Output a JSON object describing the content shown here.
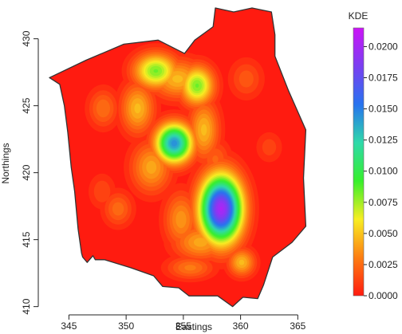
{
  "chart_data": {
    "type": "heatmap",
    "title": "",
    "xlabel": "Eastings",
    "ylabel": "Northings",
    "xlim": [
      343.3,
      366.3
    ],
    "ylim": [
      409.8,
      432.3
    ],
    "x_ticks": [
      "345",
      "350",
      "355",
      "360",
      "365"
    ],
    "y_ticks": [
      "410",
      "415",
      "420",
      "425",
      "430"
    ],
    "legend": {
      "title": "KDE",
      "position": "right",
      "range": [
        0,
        0.0215
      ],
      "ticks": [
        "0.0000",
        "0.0025",
        "0.0050",
        "0.0075",
        "0.0100",
        "0.0125",
        "0.0150",
        "0.0175",
        "0.0200"
      ],
      "colors": [
        "#ff1b10",
        "#fd7e12",
        "#f8ee23",
        "#36ef2b",
        "#2fd9aa",
        "#2773ef",
        "#7a3ff1",
        "#cc14f7"
      ]
    },
    "boundary": [
      [
        343.3,
        427.1
      ],
      [
        346.5,
        428.4
      ],
      [
        349.8,
        429.6
      ],
      [
        352.8,
        429.9
      ],
      [
        355.1,
        428.9
      ],
      [
        356.0,
        429.9
      ],
      [
        357.6,
        430.9
      ],
      [
        357.8,
        432.3
      ],
      [
        359.4,
        432.0
      ],
      [
        361.0,
        432.3
      ],
      [
        362.7,
        432.0
      ],
      [
        363.0,
        430.3
      ],
      [
        363.0,
        428.7
      ],
      [
        364.2,
        426.1
      ],
      [
        365.7,
        423.2
      ],
      [
        365.5,
        419.6
      ],
      [
        365.7,
        416.0
      ],
      [
        364.5,
        414.8
      ],
      [
        362.8,
        413.7
      ],
      [
        362.0,
        411.6
      ],
      [
        361.5,
        410.6
      ],
      [
        360.2,
        410.7
      ],
      [
        359.3,
        410.0
      ],
      [
        358.0,
        410.8
      ],
      [
        356.2,
        410.8
      ],
      [
        355.5,
        410.8
      ],
      [
        354.6,
        411.4
      ],
      [
        353.2,
        411.5
      ],
      [
        352.4,
        412.3
      ],
      [
        350.4,
        412.9
      ],
      [
        348.1,
        413.5
      ],
      [
        347.3,
        413.5
      ],
      [
        347.1,
        413.8
      ],
      [
        346.6,
        413.3
      ],
      [
        346.2,
        413.7
      ],
      [
        346.1,
        414.0
      ],
      [
        345.8,
        415.8
      ],
      [
        345.5,
        418.6
      ],
      [
        345.2,
        420.4
      ],
      [
        344.9,
        423.0
      ],
      [
        344.6,
        425.0
      ],
      [
        344.2,
        426.6
      ]
    ],
    "hotspots": [
      {
        "x": 358.3,
        "y": 417.3,
        "kde": 0.0205,
        "sx": 1.25,
        "sy": 1.7
      },
      {
        "x": 354.2,
        "y": 422.2,
        "kde": 0.0148,
        "sx": 1.1,
        "sy": 1.0
      },
      {
        "x": 352.6,
        "y": 427.6,
        "kde": 0.0085,
        "sx": 1.3,
        "sy": 0.9
      },
      {
        "x": 356.2,
        "y": 426.5,
        "kde": 0.0085,
        "sx": 1.0,
        "sy": 1.0
      },
      {
        "x": 354.5,
        "y": 427.0,
        "kde": 0.005,
        "sx": 1.6,
        "sy": 1.0
      },
      {
        "x": 351.0,
        "y": 424.8,
        "kde": 0.005,
        "sx": 1.0,
        "sy": 1.3
      },
      {
        "x": 352.2,
        "y": 420.4,
        "kde": 0.0045,
        "sx": 1.2,
        "sy": 1.3
      },
      {
        "x": 356.8,
        "y": 423.2,
        "kde": 0.005,
        "sx": 0.9,
        "sy": 1.5
      },
      {
        "x": 356.5,
        "y": 414.8,
        "kde": 0.0045,
        "sx": 1.6,
        "sy": 0.9
      },
      {
        "x": 354.8,
        "y": 416.5,
        "kde": 0.004,
        "sx": 1.0,
        "sy": 1.4
      },
      {
        "x": 360.1,
        "y": 413.3,
        "kde": 0.005,
        "sx": 0.8,
        "sy": 0.7
      },
      {
        "x": 355.6,
        "y": 412.9,
        "kde": 0.0032,
        "sx": 1.4,
        "sy": 0.6
      },
      {
        "x": 348.0,
        "y": 424.8,
        "kde": 0.003,
        "sx": 0.9,
        "sy": 1.0
      },
      {
        "x": 349.3,
        "y": 417.3,
        "kde": 0.0028,
        "sx": 0.9,
        "sy": 0.9
      },
      {
        "x": 360.5,
        "y": 427.0,
        "kde": 0.0022,
        "sx": 1.0,
        "sy": 1.0
      },
      {
        "x": 357.8,
        "y": 421.0,
        "kde": 0.0025,
        "sx": 0.9,
        "sy": 1.0
      },
      {
        "x": 347.9,
        "y": 418.6,
        "kde": 0.0018,
        "sx": 0.8,
        "sy": 0.9
      },
      {
        "x": 362.5,
        "y": 421.9,
        "kde": 0.0016,
        "sx": 0.8,
        "sy": 0.8
      }
    ]
  }
}
